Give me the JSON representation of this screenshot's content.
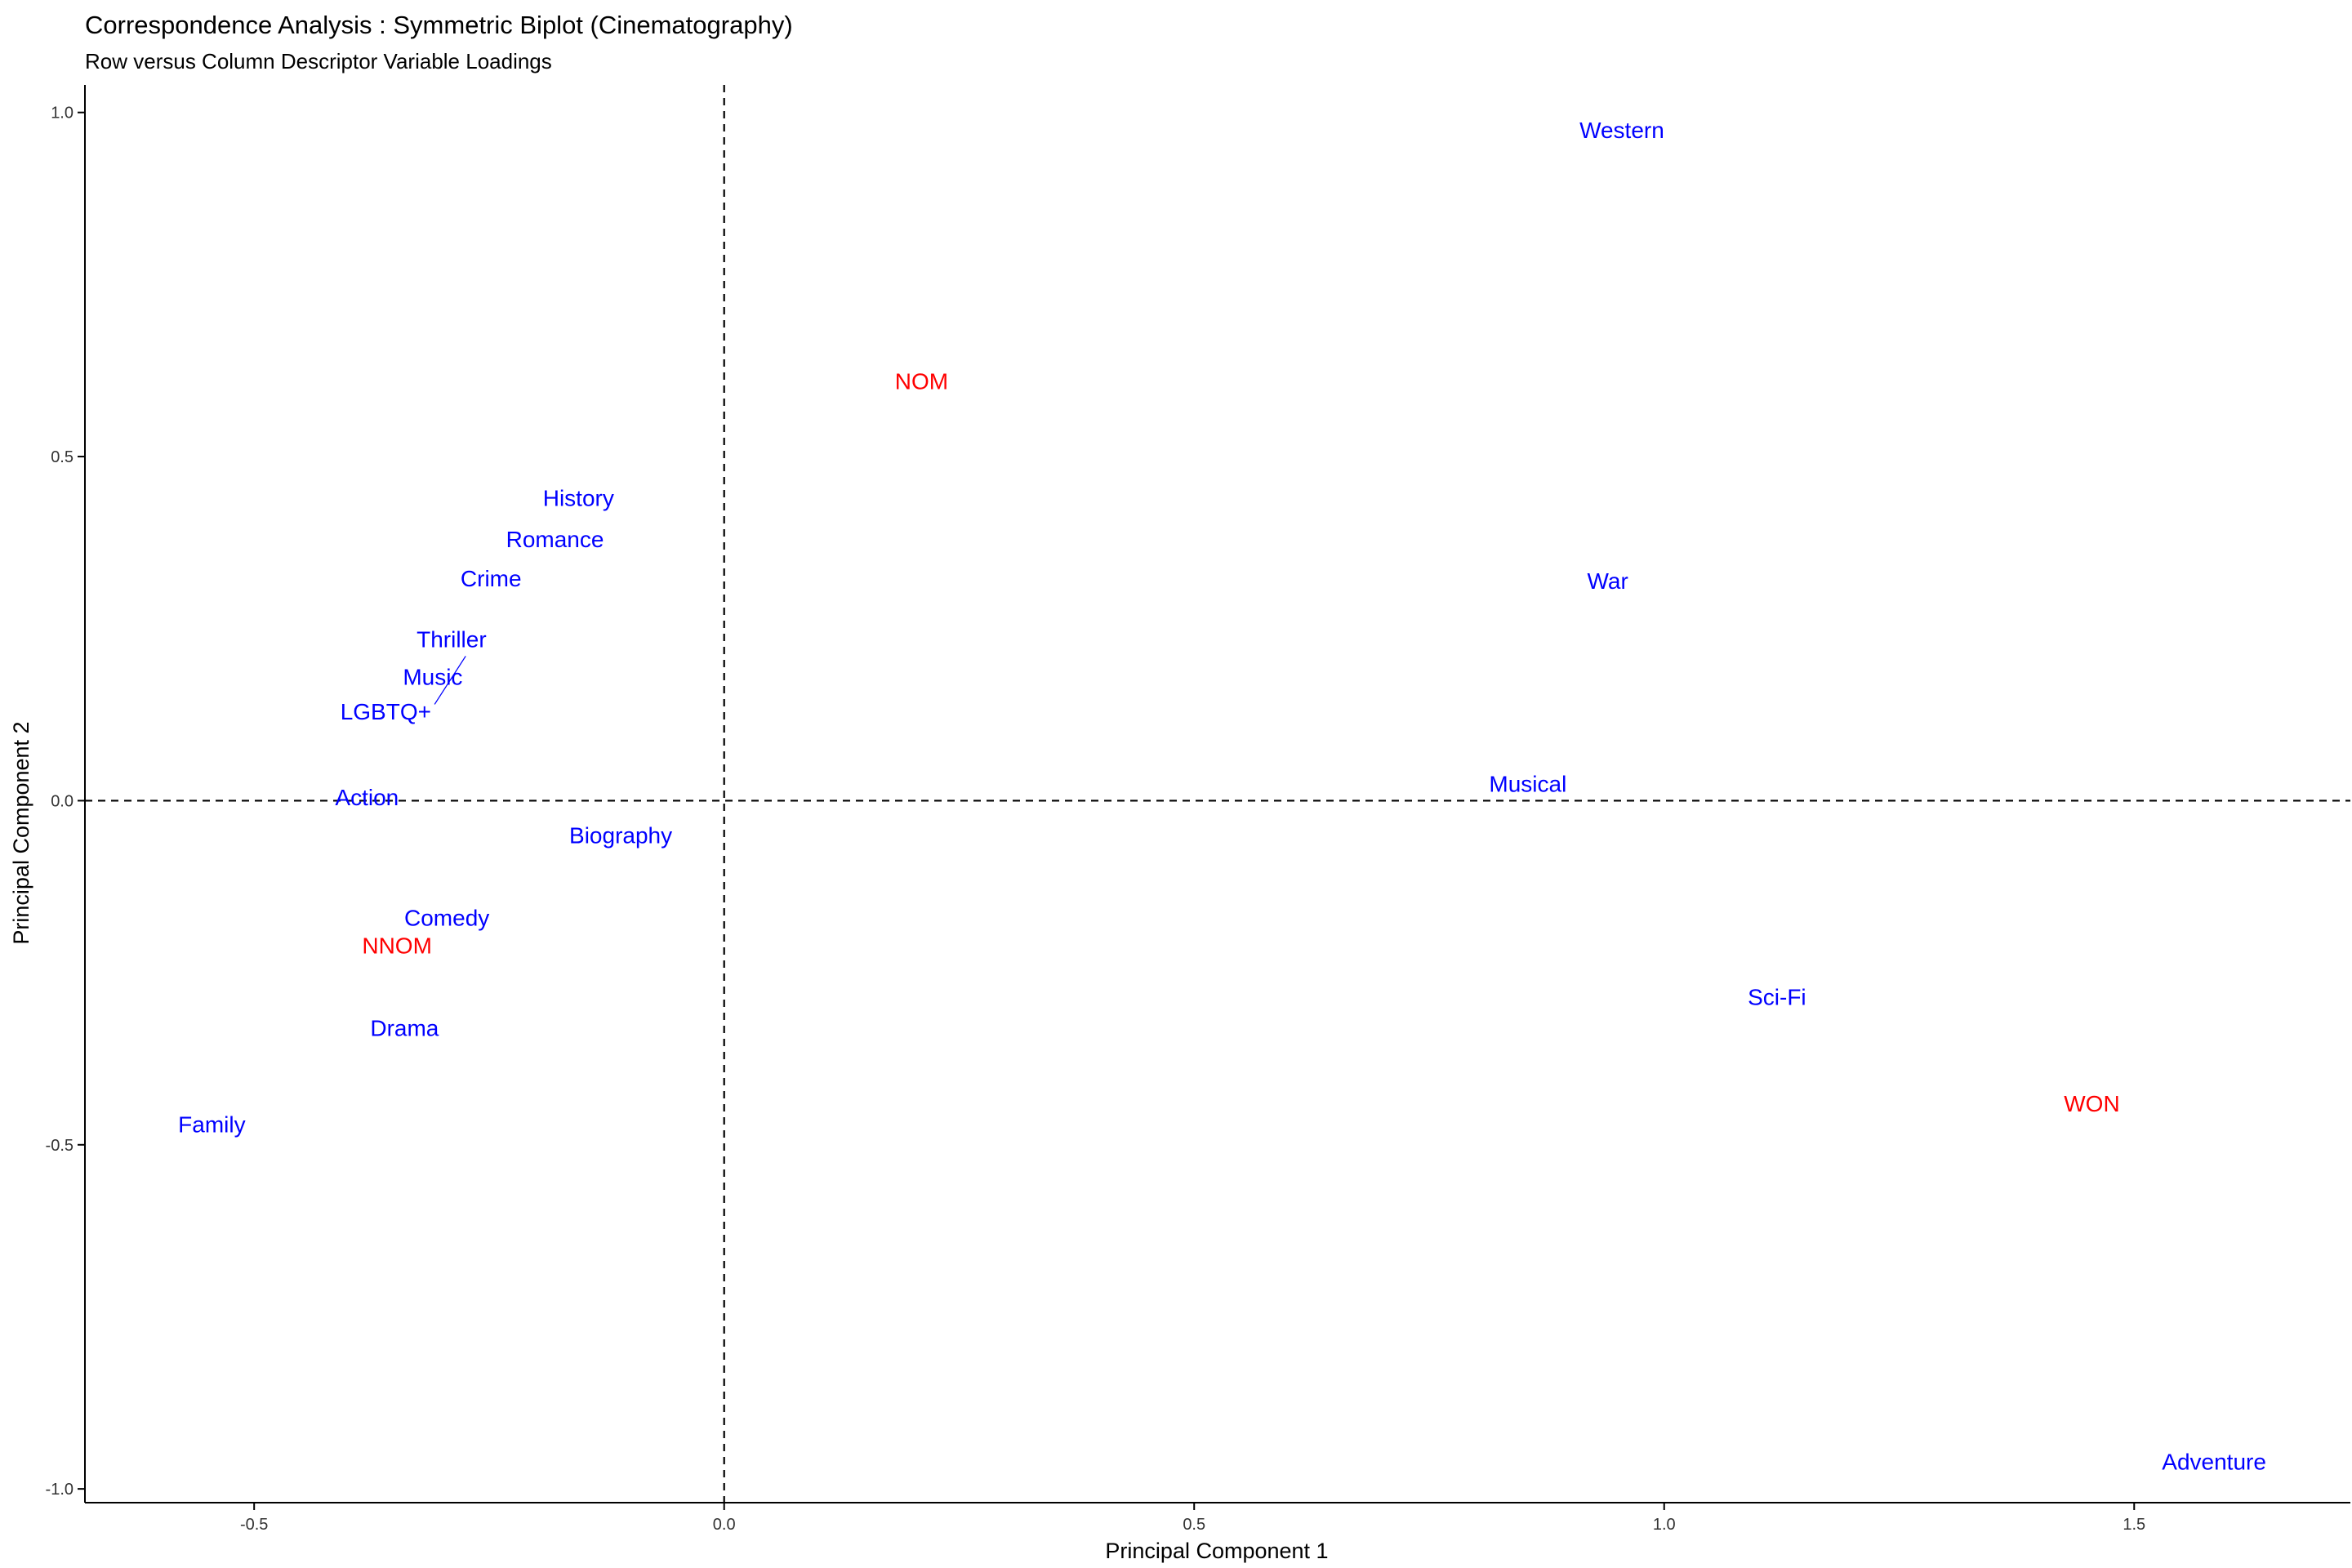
{
  "colors": {
    "row": "#0000FF",
    "column": "#FF0000",
    "axis": "#000000",
    "tick_text": "#333333"
  },
  "chart_data": {
    "type": "scatter",
    "title": "Correspondence Analysis : Symmetric Biplot (Cinematography)",
    "subtitle": "Row versus Column Descriptor Variable Loadings",
    "xlabel": "Principal Component 1",
    "ylabel": "Principal Component 2",
    "xlim": [
      -0.68,
      1.73
    ],
    "ylim": [
      -1.02,
      1.04
    ],
    "xticks": [
      -0.5,
      0.0,
      0.5,
      1.0,
      1.5
    ],
    "xtick_labels": [
      "-0.5",
      "0.0",
      "0.5",
      "1.0",
      "1.5"
    ],
    "yticks": [
      -1.0,
      -0.5,
      0.0,
      0.5,
      1.0
    ],
    "ytick_labels": [
      "-1.0",
      "-0.5",
      "0.0",
      "0.5",
      "1.0"
    ],
    "reference_lines": {
      "x": 0,
      "y": 0,
      "style": "dashed"
    },
    "grid": false,
    "series": [
      {
        "group": "row",
        "color": "#0000FF",
        "points": [
          {
            "label": "Western",
            "x": 0.955,
            "y": 0.975
          },
          {
            "label": "History",
            "x": -0.155,
            "y": 0.44
          },
          {
            "label": "Romance",
            "x": -0.18,
            "y": 0.38
          },
          {
            "label": "Crime",
            "x": -0.248,
            "y": 0.323
          },
          {
            "label": "War",
            "x": 0.94,
            "y": 0.32
          },
          {
            "label": "Thriller",
            "x": -0.29,
            "y": 0.235
          },
          {
            "label": "Music",
            "x": -0.31,
            "y": 0.18
          },
          {
            "label": "LGBTQ+",
            "x": -0.36,
            "y": 0.13
          },
          {
            "label": "Action",
            "x": -0.38,
            "y": 0.005
          },
          {
            "label": "Musical",
            "x": 0.855,
            "y": 0.025
          },
          {
            "label": "Biography",
            "x": -0.11,
            "y": -0.05
          },
          {
            "label": "Comedy",
            "x": -0.295,
            "y": -0.17
          },
          {
            "label": "Drama",
            "x": -0.34,
            "y": -0.33
          },
          {
            "label": "Sci-Fi",
            "x": 1.12,
            "y": -0.285
          },
          {
            "label": "Family",
            "x": -0.545,
            "y": -0.47
          },
          {
            "label": "Adventure",
            "x": 1.585,
            "y": -0.96
          }
        ]
      },
      {
        "group": "column",
        "color": "#FF0000",
        "points": [
          {
            "label": "NOM",
            "x": 0.21,
            "y": 0.61
          },
          {
            "label": "NNOM",
            "x": -0.348,
            "y": -0.21
          },
          {
            "label": "WON",
            "x": 1.455,
            "y": -0.44
          }
        ]
      }
    ],
    "leader_lines": [
      {
        "from": "Music",
        "x1": -0.308,
        "y1": 0.14,
        "x2": -0.275,
        "y2": 0.21
      }
    ]
  }
}
